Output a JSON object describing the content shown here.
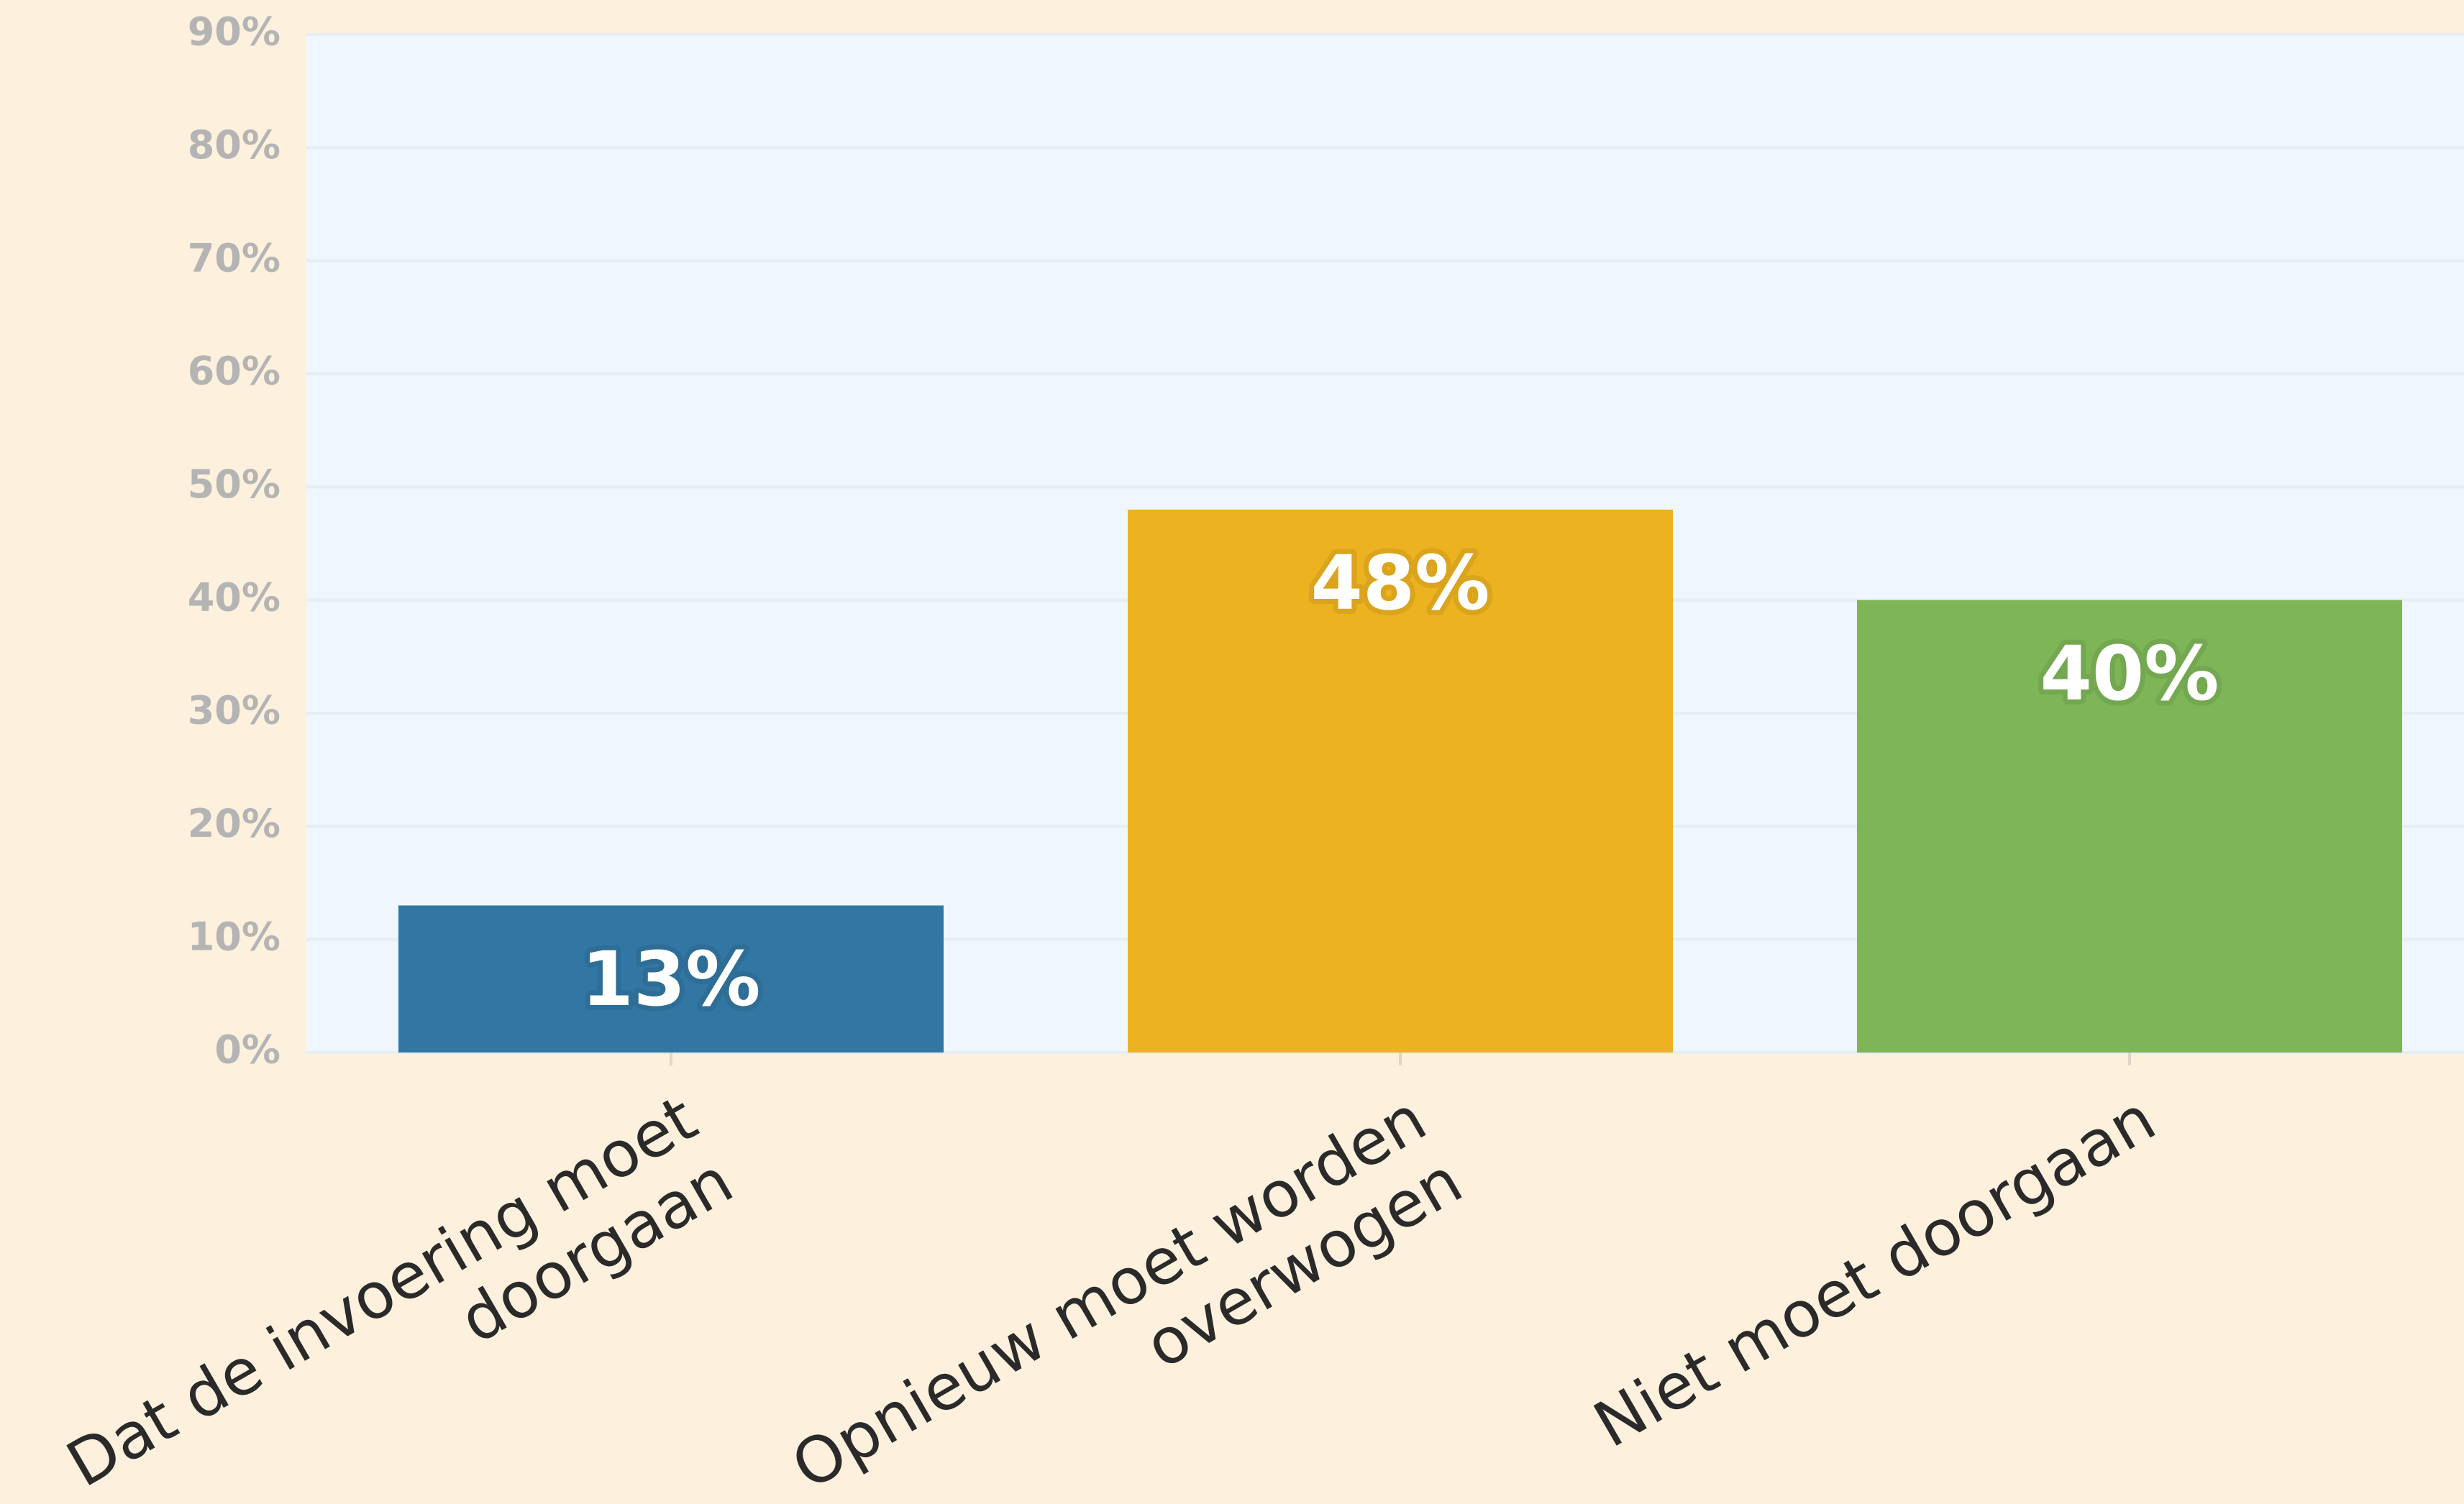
{
  "chart_data": {
    "type": "bar",
    "categories": [
      "Dat de invoering moet doorgaan",
      "Opnieuw moet worden overwogen",
      "Niet moet doorgaan"
    ],
    "values": [
      13,
      48,
      40
    ],
    "value_labels": [
      "13%",
      "48%",
      "40%"
    ],
    "colors": [
      "#3277a3",
      "#edb220",
      "#7db557"
    ],
    "ylim": [
      0,
      90
    ],
    "yticks": [
      {
        "value": 0,
        "label": "0%"
      },
      {
        "value": 10,
        "label": "10%"
      },
      {
        "value": 20,
        "label": "20%"
      },
      {
        "value": 30,
        "label": "30%"
      },
      {
        "value": 40,
        "label": "40%"
      },
      {
        "value": 50,
        "label": "50%"
      },
      {
        "value": 60,
        "label": "60%"
      },
      {
        "value": 70,
        "label": "70%"
      },
      {
        "value": 80,
        "label": "80%"
      },
      {
        "value": 90,
        "label": "90%"
      }
    ],
    "grid": true
  }
}
